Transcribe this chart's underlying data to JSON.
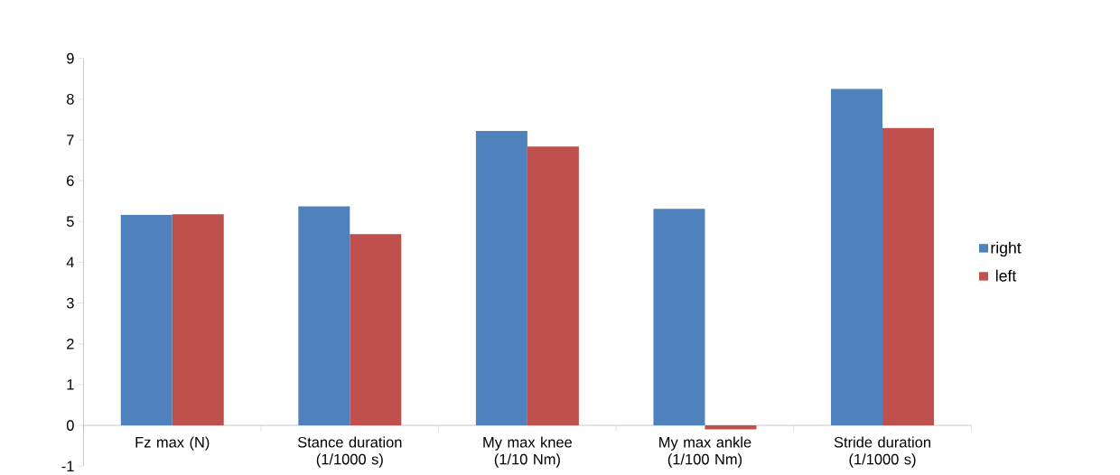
{
  "chart_data": {
    "type": "bar",
    "categories": [
      "Fz max (N)",
      "Stance duration (1/1000 s)",
      "My max knee (1/10 Nm)",
      "My max ankle (1/100 Nm)",
      "Stride duration (1/1000 s)"
    ],
    "series": [
      {
        "name": "right",
        "color": "#4f81bd",
        "values": [
          5.16,
          5.37,
          7.22,
          5.31,
          8.25
        ]
      },
      {
        "name": "left",
        "color": "#c0504d",
        "values": [
          5.18,
          4.69,
          6.84,
          -0.1,
          7.29
        ]
      }
    ],
    "ylim": [
      -1,
      9
    ],
    "yticks": [
      -1,
      0,
      1,
      2,
      3,
      4,
      5,
      6,
      7,
      8,
      9
    ],
    "grid": false,
    "legend": "right"
  }
}
